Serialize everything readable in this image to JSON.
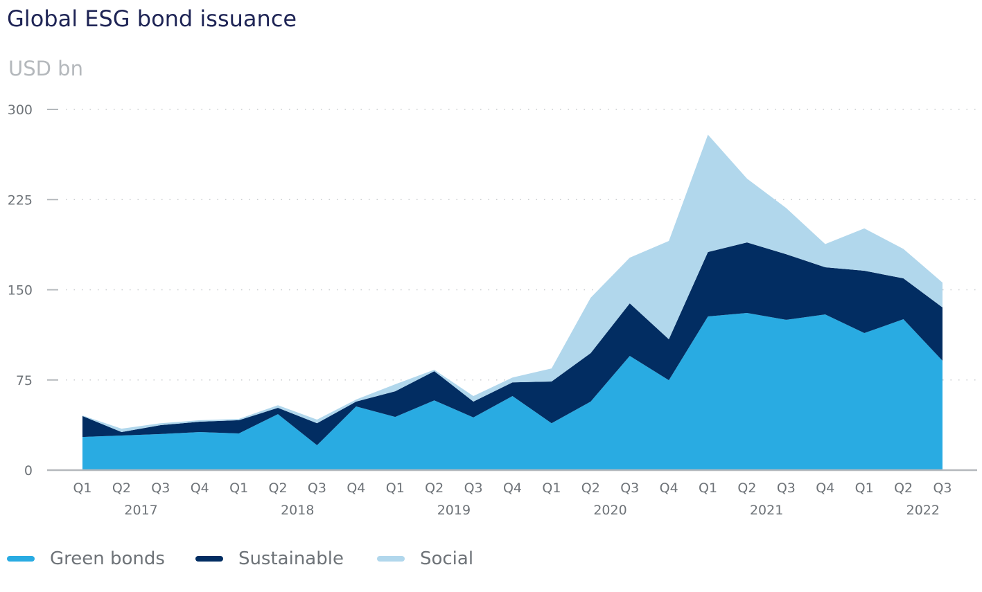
{
  "chart_data": {
    "type": "area",
    "stacked": true,
    "title": "Global ESG bond issuance",
    "ylabel": "USD bn",
    "xlabel": "",
    "ylim": [
      0,
      300
    ],
    "yticks": [
      "0",
      "75",
      "150",
      "225",
      "300"
    ],
    "ytick_values": [
      0,
      75,
      150,
      225,
      300
    ],
    "grid": "horizontal dotted",
    "legend": "bottom-left",
    "quarters": [
      "Q1",
      "Q2",
      "Q3",
      "Q4",
      "Q1",
      "Q2",
      "Q3",
      "Q4",
      "Q1",
      "Q2",
      "Q3",
      "Q4",
      "Q1",
      "Q2",
      "Q3",
      "Q4",
      "Q1",
      "Q2",
      "Q3",
      "Q4",
      "Q1",
      "Q2",
      "Q3"
    ],
    "years": [
      {
        "label": "2017",
        "start": 0
      },
      {
        "label": "2018",
        "start": 4
      },
      {
        "label": "2019",
        "start": 8
      },
      {
        "label": "2020",
        "start": 12
      },
      {
        "label": "2021",
        "start": 16
      },
      {
        "label": "2022",
        "start": 20
      }
    ],
    "series": [
      {
        "name": "Green bonds",
        "color": "#29ABE2",
        "values": [
          27.6,
          28.8,
          30,
          31.7,
          30.5,
          46.6,
          20.7,
          53,
          44.3,
          58,
          43.8,
          61.6,
          39,
          57,
          95,
          74.8,
          127.8,
          130.7,
          125,
          129.5,
          114,
          125.5,
          91
        ]
      },
      {
        "name": "Sustainable",
        "color": "#022D62",
        "values": [
          17.4,
          2.9,
          7.4,
          8.6,
          11,
          5.2,
          18.3,
          4,
          21.3,
          24.3,
          13.2,
          11.4,
          34.7,
          40.3,
          43.7,
          34,
          53.6,
          58.7,
          54.6,
          39.2,
          51.8,
          34,
          44.3
        ]
      },
      {
        "name": "Social",
        "color": "#B1D7EC",
        "values": [
          0.5,
          2.8,
          1.6,
          1.2,
          1.1,
          2.2,
          3,
          1.7,
          5.8,
          1.2,
          4.6,
          4,
          10.9,
          46.1,
          38,
          81.8,
          97.6,
          53,
          38.4,
          19.3,
          35.2,
          24.5,
          20.7
        ]
      }
    ]
  }
}
